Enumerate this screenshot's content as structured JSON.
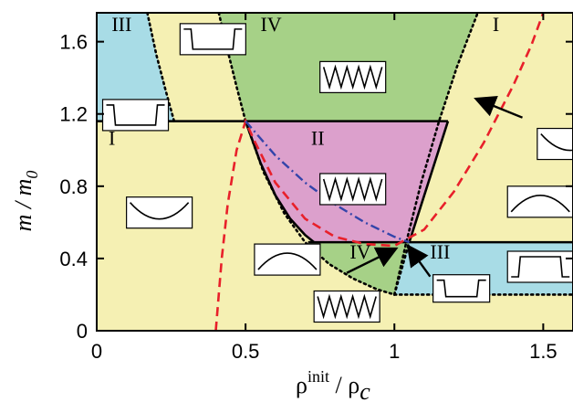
{
  "chart_data": {
    "type": "phase-diagram",
    "xlabel": {
      "main": "ρ",
      "sup": "init",
      "mid": " / ρ",
      "sub": "c"
    },
    "ylabel": {
      "main": "m / m",
      "sub": "0"
    },
    "xlim": [
      0,
      1.6
    ],
    "ylim": [
      0,
      1.76
    ],
    "xticks": [
      0,
      0.5,
      1,
      1.5
    ],
    "xtick_labels": [
      "0",
      "0.5",
      "1",
      "1.5"
    ],
    "yticks": [
      0,
      0.4,
      0.8,
      1.2,
      1.6
    ],
    "ytick_labels": [
      "0",
      "0.4",
      "0.8",
      "1.2",
      "1.6"
    ],
    "colors": {
      "I": "#f5f0b3",
      "II": "#dca0cc",
      "III": "#a8dce6",
      "IV": "#a6d187",
      "red_dashed": "#e8202a",
      "blue_dashdot": "#3344aa"
    },
    "phase_labels": [
      {
        "text": "III",
        "x": 0.05,
        "y": 1.66
      },
      {
        "text": "IV",
        "x": 0.55,
        "y": 1.66
      },
      {
        "text": "I",
        "x": 1.33,
        "y": 1.66
      },
      {
        "text": "I",
        "x": 0.04,
        "y": 1.03
      },
      {
        "text": "II",
        "x": 0.72,
        "y": 1.03
      },
      {
        "text": "IV",
        "x": 0.85,
        "y": 0.4
      },
      {
        "text": "III",
        "x": 1.12,
        "y": 0.4
      }
    ],
    "boundaries": {
      "solid_horizontal_upper": {
        "x": [
          0,
          1.18
        ],
        "y": 1.16
      },
      "solid_horizontal_lower": {
        "x": [
          0.71,
          1.6
        ],
        "y": 0.49
      },
      "solid_curve_II_left": {
        "x": [
          0.5,
          0.55,
          0.6,
          0.65,
          0.7,
          0.73
        ],
        "y": [
          1.16,
          0.93,
          0.75,
          0.62,
          0.53,
          0.49
        ]
      },
      "solid_line_II_right": {
        "x": [
          1.18,
          1.05
        ],
        "y": [
          1.16,
          0.49
        ]
      },
      "dotted_III_IV_upper": {
        "x": [
          0.17,
          0.2,
          0.23,
          0.26
        ],
        "y": [
          1.76,
          1.53,
          1.34,
          1.16
        ]
      },
      "dotted_lower_arc": {
        "x": [
          0.5,
          0.56,
          0.63,
          0.7,
          0.78,
          0.86,
          0.94,
          1.0
        ],
        "y": [
          1.16,
          0.88,
          0.65,
          0.49,
          0.37,
          0.29,
          0.23,
          0.2
        ]
      },
      "dotted_IV_right": {
        "x": [
          1.0,
          1.04,
          1.09,
          1.15,
          1.21,
          1.28
        ],
        "y": [
          0.2,
          0.49,
          0.82,
          1.16,
          1.46,
          1.76
        ]
      },
      "dotted_top_left_IV": {
        "x": [
          0.41,
          0.44,
          0.47,
          0.5
        ],
        "y": [
          1.76,
          1.55,
          1.35,
          1.16
        ]
      },
      "dotted_III_lower_bottom": {
        "x": [
          1.0,
          1.6
        ],
        "y": 0.2
      },
      "dotted_III_lower_left": {
        "x": [
          1.0,
          1.05
        ],
        "y": [
          0.2,
          0.49
        ]
      }
    },
    "red_dashed_curve": {
      "x": [
        0.4,
        0.41,
        0.42,
        0.44,
        0.47,
        0.5,
        0.53,
        0.6,
        0.7,
        0.8,
        0.9,
        1.0,
        1.1,
        1.2,
        1.3,
        1.4,
        1.46,
        1.5
      ],
      "y": [
        0.0,
        0.2,
        0.4,
        0.7,
        1.0,
        1.16,
        1.05,
        0.82,
        0.62,
        0.52,
        0.48,
        0.47,
        0.56,
        0.77,
        1.04,
        1.36,
        1.58,
        1.76
      ]
    },
    "blue_dashdot_curve": {
      "x": [
        0.5,
        0.6,
        0.7,
        0.8,
        0.9,
        1.0,
        1.05
      ],
      "y": [
        1.16,
        0.97,
        0.82,
        0.7,
        0.6,
        0.52,
        0.49
      ]
    },
    "inset_icons": [
      {
        "shape": "well-box",
        "x": 0.28,
        "y": 1.7
      },
      {
        "shape": "sawtooth",
        "x": 0.75,
        "y": 1.49
      },
      {
        "shape": "well-box",
        "x": 0.02,
        "y": 1.28
      },
      {
        "shape": "valley",
        "x": 1.48,
        "y": 1.12
      },
      {
        "shape": "sawtooth",
        "x": 0.75,
        "y": 0.87
      },
      {
        "shape": "valley",
        "x": 0.1,
        "y": 0.74
      },
      {
        "shape": "hill",
        "x": 1.38,
        "y": 0.8
      },
      {
        "shape": "hill",
        "x": 0.53,
        "y": 0.48
      },
      {
        "shape": "sawtooth",
        "x": 0.73,
        "y": 0.22
      },
      {
        "shape": "top-hat",
        "x": 1.38,
        "y": 0.44
      },
      {
        "shape": "well-box-small",
        "x": 1.13,
        "y": 0.31
      }
    ],
    "arrows": [
      {
        "from": [
          1.43,
          1.18
        ],
        "to": [
          1.28,
          1.28
        ]
      },
      {
        "from": [
          0.84,
          0.32
        ],
        "to": [
          1.0,
          0.45
        ]
      },
      {
        "from": [
          1.12,
          0.3
        ],
        "to": [
          1.05,
          0.46
        ]
      }
    ],
    "legend": "none",
    "grid": false
  }
}
